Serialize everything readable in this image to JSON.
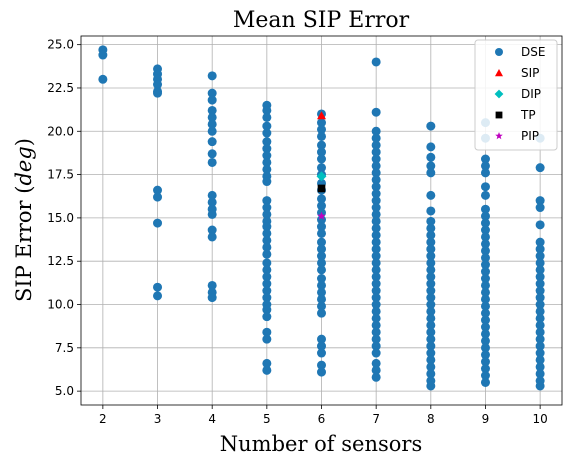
{
  "chart_data": {
    "type": "scatter",
    "title": "Mean SIP Error",
    "xlabel": "Number of sensors",
    "ylabel_main": "SIP Error (",
    "ylabel_italic": "deg",
    "ylabel_end": ")",
    "xlim": [
      1.6,
      10.4
    ],
    "ylim": [
      4.2,
      25.5
    ],
    "xticks": [
      "2",
      "3",
      "4",
      "5",
      "6",
      "7",
      "8",
      "9",
      "10"
    ],
    "yticks": [
      "5.0",
      "7.5",
      "10.0",
      "12.5",
      "15.0",
      "17.5",
      "20.0",
      "22.5",
      "25.0"
    ],
    "grid": true,
    "legend_position": "top-right",
    "colors": {
      "DSE": "#1f77b4",
      "SIP": "#ff0000",
      "DIP": "#00bfbf",
      "TP": "#000000",
      "PIP": "#bf00bf"
    },
    "series": [
      {
        "name": "DSE",
        "marker": "circle",
        "points": [
          [
            2,
            24.7
          ],
          [
            2,
            24.4
          ],
          [
            2,
            23.0
          ],
          [
            3,
            23.6
          ],
          [
            3,
            23.3
          ],
          [
            3,
            23.0
          ],
          [
            3,
            22.7
          ],
          [
            3,
            22.3
          ],
          [
            3,
            22.2
          ],
          [
            3,
            16.6
          ],
          [
            3,
            16.2
          ],
          [
            3,
            14.7
          ],
          [
            3,
            11.0
          ],
          [
            3,
            10.5
          ],
          [
            4,
            23.2
          ],
          [
            4,
            22.2
          ],
          [
            4,
            21.8
          ],
          [
            4,
            21.2
          ],
          [
            4,
            20.8
          ],
          [
            4,
            20.4
          ],
          [
            4,
            20.0
          ],
          [
            4,
            19.4
          ],
          [
            4,
            18.7
          ],
          [
            4,
            18.2
          ],
          [
            4,
            16.3
          ],
          [
            4,
            15.9
          ],
          [
            4,
            15.5
          ],
          [
            4,
            15.2
          ],
          [
            4,
            14.3
          ],
          [
            4,
            13.9
          ],
          [
            4,
            11.1
          ],
          [
            4,
            10.7
          ],
          [
            4,
            10.4
          ],
          [
            5,
            21.5
          ],
          [
            5,
            21.2
          ],
          [
            5,
            20.8
          ],
          [
            5,
            20.3
          ],
          [
            5,
            19.9
          ],
          [
            5,
            19.4
          ],
          [
            5,
            19.0
          ],
          [
            5,
            18.6
          ],
          [
            5,
            18.2
          ],
          [
            5,
            17.8
          ],
          [
            5,
            17.4
          ],
          [
            5,
            17.1
          ],
          [
            5,
            16.0
          ],
          [
            5,
            15.6
          ],
          [
            5,
            15.2
          ],
          [
            5,
            14.8
          ],
          [
            5,
            14.5
          ],
          [
            5,
            14.1
          ],
          [
            5,
            13.7
          ],
          [
            5,
            13.3
          ],
          [
            5,
            12.9
          ],
          [
            5,
            12.4
          ],
          [
            5,
            12.0
          ],
          [
            5,
            11.6
          ],
          [
            5,
            11.2
          ],
          [
            5,
            10.8
          ],
          [
            5,
            10.4
          ],
          [
            5,
            10.0
          ],
          [
            5,
            9.7
          ],
          [
            5,
            9.3
          ],
          [
            5,
            8.4
          ],
          [
            5,
            8.0
          ],
          [
            5,
            6.6
          ],
          [
            5,
            6.2
          ],
          [
            6,
            21.0
          ],
          [
            6,
            20.5
          ],
          [
            6,
            20.1
          ],
          [
            6,
            19.7
          ],
          [
            6,
            19.2
          ],
          [
            6,
            18.8
          ],
          [
            6,
            18.4
          ],
          [
            6,
            17.9
          ],
          [
            6,
            17.5
          ],
          [
            6,
            17.0
          ],
          [
            6,
            16.6
          ],
          [
            6,
            16.1
          ],
          [
            6,
            15.7
          ],
          [
            6,
            15.3
          ],
          [
            6,
            14.9
          ],
          [
            6,
            14.5
          ],
          [
            6,
            14.1
          ],
          [
            6,
            13.6
          ],
          [
            6,
            13.2
          ],
          [
            6,
            12.8
          ],
          [
            6,
            12.4
          ],
          [
            6,
            12.0
          ],
          [
            6,
            11.5
          ],
          [
            6,
            11.1
          ],
          [
            6,
            10.7
          ],
          [
            6,
            10.3
          ],
          [
            6,
            9.9
          ],
          [
            6,
            9.5
          ],
          [
            6,
            8.0
          ],
          [
            6,
            7.6
          ],
          [
            6,
            7.2
          ],
          [
            6,
            6.5
          ],
          [
            6,
            6.1
          ],
          [
            7,
            24.0
          ],
          [
            7,
            21.1
          ],
          [
            7,
            20.0
          ],
          [
            7,
            19.6
          ],
          [
            7,
            19.2
          ],
          [
            7,
            18.8
          ],
          [
            7,
            18.4
          ],
          [
            7,
            18.0
          ],
          [
            7,
            17.6
          ],
          [
            7,
            17.2
          ],
          [
            7,
            16.8
          ],
          [
            7,
            16.4
          ],
          [
            7,
            16.0
          ],
          [
            7,
            15.6
          ],
          [
            7,
            15.2
          ],
          [
            7,
            14.8
          ],
          [
            7,
            14.4
          ],
          [
            7,
            14.0
          ],
          [
            7,
            13.6
          ],
          [
            7,
            13.2
          ],
          [
            7,
            12.8
          ],
          [
            7,
            12.4
          ],
          [
            7,
            12.0
          ],
          [
            7,
            11.6
          ],
          [
            7,
            11.2
          ],
          [
            7,
            10.8
          ],
          [
            7,
            10.4
          ],
          [
            7,
            10.0
          ],
          [
            7,
            9.6
          ],
          [
            7,
            9.2
          ],
          [
            7,
            8.8
          ],
          [
            7,
            8.4
          ],
          [
            7,
            8.0
          ],
          [
            7,
            7.6
          ],
          [
            7,
            7.2
          ],
          [
            7,
            6.6
          ],
          [
            7,
            6.2
          ],
          [
            7,
            5.8
          ],
          [
            8,
            20.3
          ],
          [
            8,
            19.1
          ],
          [
            8,
            18.5
          ],
          [
            8,
            18.0
          ],
          [
            8,
            17.6
          ],
          [
            8,
            16.3
          ],
          [
            8,
            15.4
          ],
          [
            8,
            14.8
          ],
          [
            8,
            14.4
          ],
          [
            8,
            14.0
          ],
          [
            8,
            13.6
          ],
          [
            8,
            13.2
          ],
          [
            8,
            12.8
          ],
          [
            8,
            12.4
          ],
          [
            8,
            12.0
          ],
          [
            8,
            11.6
          ],
          [
            8,
            11.2
          ],
          [
            8,
            10.8
          ],
          [
            8,
            10.4
          ],
          [
            8,
            10.0
          ],
          [
            8,
            9.6
          ],
          [
            8,
            9.2
          ],
          [
            8,
            8.8
          ],
          [
            8,
            8.4
          ],
          [
            8,
            8.0
          ],
          [
            8,
            7.6
          ],
          [
            8,
            7.2
          ],
          [
            8,
            6.8
          ],
          [
            8,
            6.4
          ],
          [
            8,
            6.0
          ],
          [
            8,
            5.6
          ],
          [
            8,
            5.3
          ],
          [
            9,
            20.5
          ],
          [
            9,
            19.6
          ],
          [
            9,
            18.4
          ],
          [
            9,
            18.0
          ],
          [
            9,
            17.6
          ],
          [
            9,
            16.8
          ],
          [
            9,
            16.3
          ],
          [
            9,
            15.5
          ],
          [
            9,
            15.1
          ],
          [
            9,
            14.7
          ],
          [
            9,
            14.3
          ],
          [
            9,
            13.9
          ],
          [
            9,
            13.5
          ],
          [
            9,
            13.1
          ],
          [
            9,
            12.7
          ],
          [
            9,
            12.3
          ],
          [
            9,
            11.9
          ],
          [
            9,
            11.5
          ],
          [
            9,
            11.1
          ],
          [
            9,
            10.7
          ],
          [
            9,
            10.3
          ],
          [
            9,
            9.9
          ],
          [
            9,
            9.5
          ],
          [
            9,
            9.1
          ],
          [
            9,
            8.7
          ],
          [
            9,
            8.3
          ],
          [
            9,
            7.9
          ],
          [
            9,
            7.5
          ],
          [
            9,
            7.1
          ],
          [
            9,
            6.7
          ],
          [
            9,
            6.3
          ],
          [
            9,
            5.9
          ],
          [
            9,
            5.5
          ],
          [
            10,
            19.6
          ],
          [
            10,
            17.9
          ],
          [
            10,
            16.0
          ],
          [
            10,
            15.6
          ],
          [
            10,
            14.6
          ],
          [
            10,
            13.6
          ],
          [
            10,
            13.2
          ],
          [
            10,
            12.8
          ],
          [
            10,
            12.4
          ],
          [
            10,
            12.0
          ],
          [
            10,
            11.6
          ],
          [
            10,
            11.2
          ],
          [
            10,
            10.8
          ],
          [
            10,
            10.4
          ],
          [
            10,
            10.0
          ],
          [
            10,
            9.6
          ],
          [
            10,
            9.2
          ],
          [
            10,
            8.8
          ],
          [
            10,
            8.4
          ],
          [
            10,
            8.0
          ],
          [
            10,
            7.6
          ],
          [
            10,
            7.2
          ],
          [
            10,
            6.8
          ],
          [
            10,
            6.4
          ],
          [
            10,
            6.0
          ],
          [
            10,
            5.6
          ],
          [
            10,
            5.3
          ]
        ]
      },
      {
        "name": "SIP",
        "marker": "triangle",
        "points": [
          [
            6,
            20.9
          ]
        ]
      },
      {
        "name": "DIP",
        "marker": "diamond",
        "points": [
          [
            6,
            17.4
          ]
        ]
      },
      {
        "name": "TP",
        "marker": "square",
        "points": [
          [
            6,
            16.7
          ]
        ]
      },
      {
        "name": "PIP",
        "marker": "star",
        "points": [
          [
            6,
            15.1
          ]
        ]
      }
    ]
  }
}
